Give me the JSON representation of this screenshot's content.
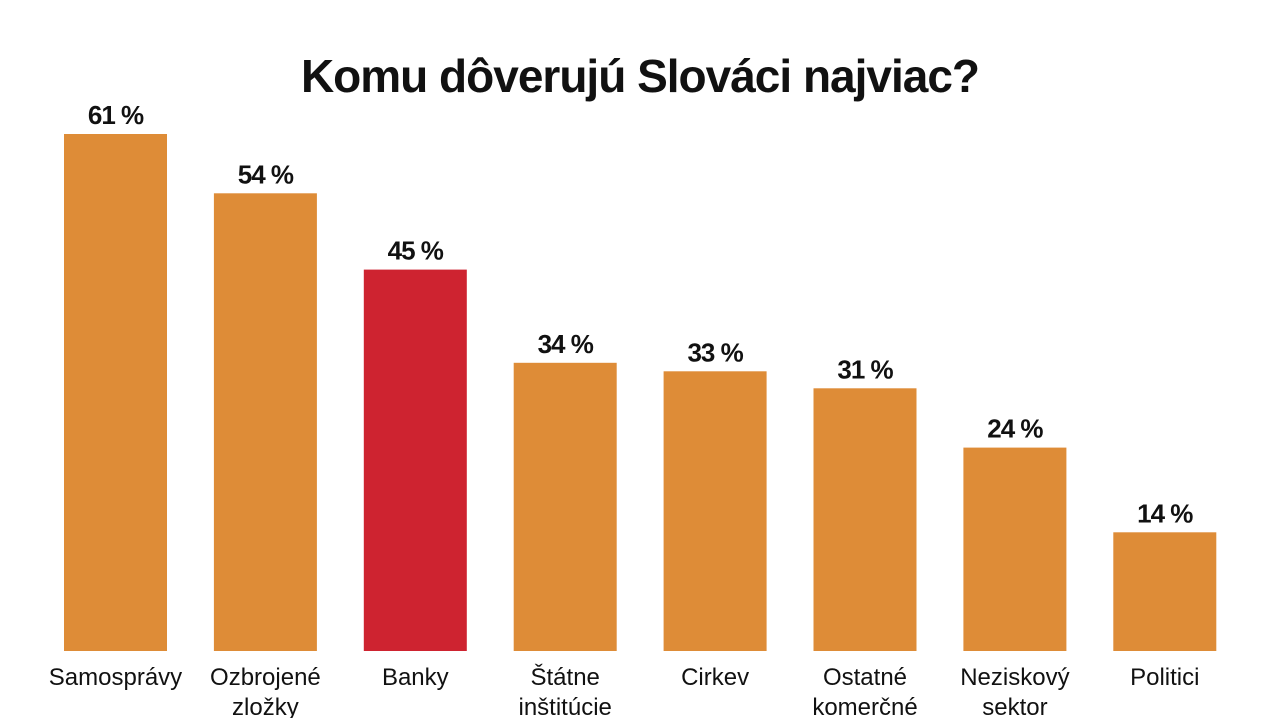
{
  "chart_data": {
    "type": "bar",
    "title": "Komu dôverujú Slováci najviac?",
    "xlabel": "",
    "ylabel": "",
    "ylim": [
      0,
      61
    ],
    "grid": false,
    "legend": "none",
    "categories": [
      [
        "Samosprávy"
      ],
      [
        "Ozbrojené",
        "zložky"
      ],
      [
        "Banky"
      ],
      [
        "Štátne",
        "inštitúcie"
      ],
      [
        "Cirkev"
      ],
      [
        "Ostatné",
        "komerčné"
      ],
      [
        "Neziskový",
        "sektor"
      ],
      [
        "Politici"
      ]
    ],
    "values": [
      61,
      54,
      45,
      34,
      33,
      31,
      24,
      14
    ],
    "value_labels": [
      "61 %",
      "54 %",
      "45 %",
      "34 %",
      "33 %",
      "31 %",
      "24 %",
      "14 %"
    ],
    "colors": {
      "default": "#DE8C37",
      "highlight": "#CE2330",
      "highlight_index": 2,
      "text": "#111111"
    }
  }
}
